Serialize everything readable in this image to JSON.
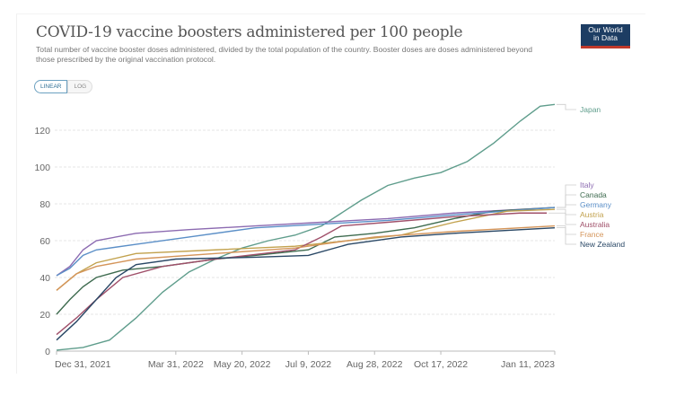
{
  "header": {
    "title": "COVID-19 vaccine boosters administered per 100 people",
    "subtitle": "Total number of vaccine booster doses administered, divided by the total population of the country. Booster doses are doses administered beyond those prescribed by the original vaccination protocol.",
    "logo_line1": "Our World",
    "logo_line2": "in Data"
  },
  "controls": {
    "linear_label": "LINEAR",
    "log_label": "LOG"
  },
  "chart_data": {
    "type": "line",
    "title": "COVID-19 vaccine boosters administered per 100 people",
    "x_unit": "days since Dec 31, 2021",
    "xlim": [
      0,
      376
    ],
    "ylim": [
      0,
      130
    ],
    "y_ticks": [
      0,
      20,
      40,
      60,
      80,
      100,
      120
    ],
    "x_ticks": [
      {
        "label": "Dec 31, 2021",
        "day": 0
      },
      {
        "label": "Mar 31, 2022",
        "day": 90
      },
      {
        "label": "May 20, 2022",
        "day": 140
      },
      {
        "label": "Jul 9, 2022",
        "day": 190
      },
      {
        "label": "Aug 28, 2022",
        "day": 240
      },
      {
        "label": "Oct 17, 2022",
        "day": 290
      },
      {
        "label": "Jan 11, 2023",
        "day": 376
      }
    ],
    "grid": true,
    "series": [
      {
        "name": "Japan",
        "color": "#5f9d8c",
        "x": [
          0,
          20,
          40,
          60,
          80,
          100,
          120,
          140,
          160,
          180,
          200,
          215,
          230,
          250,
          270,
          290,
          310,
          330,
          350,
          365,
          376
        ],
        "y": [
          0.5,
          2,
          6,
          18,
          32,
          43,
          50,
          56,
          60,
          63,
          68,
          75,
          82,
          90,
          94,
          97,
          103,
          113,
          125,
          133,
          134
        ]
      },
      {
        "name": "Italy",
        "color": "#8c6bb1",
        "x": [
          0,
          10,
          20,
          30,
          60,
          100,
          150,
          200,
          250,
          300,
          376
        ],
        "y": [
          41,
          46,
          55,
          60,
          64,
          66,
          68,
          70,
          72,
          75,
          78
        ]
      },
      {
        "name": "Canada",
        "color": "#3e6b4f",
        "x": [
          0,
          10,
          20,
          30,
          50,
          80,
          120,
          150,
          190,
          210,
          240,
          270,
          300,
          330,
          376
        ],
        "y": [
          20,
          28,
          35,
          40,
          44,
          46,
          50,
          52,
          55,
          62,
          64,
          67,
          72,
          76,
          78
        ]
      },
      {
        "name": "Germany",
        "color": "#5b8fc7",
        "x": [
          0,
          10,
          20,
          30,
          60,
          100,
          150,
          200,
          250,
          300,
          376
        ],
        "y": [
          41,
          45,
          52,
          55,
          58,
          62,
          67,
          69,
          71,
          74,
          78
        ]
      },
      {
        "name": "Austria",
        "color": "#c2a24e",
        "x": [
          0,
          15,
          30,
          60,
          120,
          180,
          220,
          260,
          300,
          340,
          376
        ],
        "y": [
          33,
          42,
          48,
          53,
          55,
          57,
          60,
          63,
          70,
          76,
          77
        ]
      },
      {
        "name": "Australia",
        "color": "#a0506a",
        "x": [
          0,
          15,
          30,
          50,
          80,
          120,
          180,
          200,
          215,
          250,
          300,
          350,
          370
        ],
        "y": [
          9,
          18,
          28,
          40,
          46,
          50,
          55,
          62,
          68,
          70,
          73,
          75,
          75
        ]
      },
      {
        "name": "France",
        "color": "#d4955a",
        "x": [
          0,
          15,
          30,
          60,
          120,
          180,
          240,
          300,
          376
        ],
        "y": [
          33,
          42,
          46,
          50,
          53,
          56,
          62,
          65,
          68
        ]
      },
      {
        "name": "New Zealand",
        "color": "#2a4866",
        "x": [
          0,
          15,
          30,
          45,
          60,
          90,
          150,
          190,
          220,
          260,
          300,
          376
        ],
        "y": [
          6,
          16,
          28,
          40,
          47,
          50,
          51,
          52,
          58,
          62,
          64,
          67
        ]
      }
    ]
  }
}
